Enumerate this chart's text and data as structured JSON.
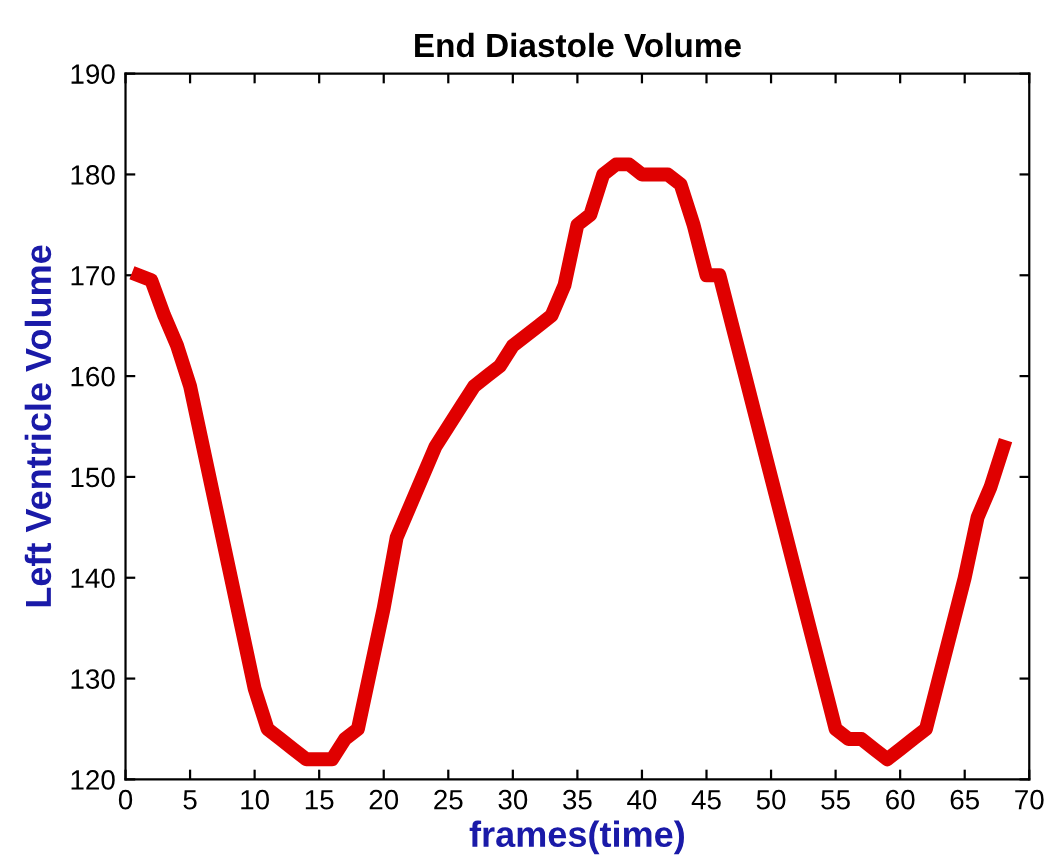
{
  "chart_data": {
    "type": "line",
    "title": "End Diastole Volume",
    "xlabel": "frames(time)",
    "ylabel": "Left Ventricle Volume",
    "x": [
      1,
      2,
      3,
      4,
      5,
      6,
      7,
      8,
      9,
      10,
      11,
      12,
      13,
      14,
      15,
      16,
      17,
      18,
      19,
      20,
      21,
      22,
      23,
      24,
      25,
      26,
      27,
      28,
      29,
      30,
      31,
      32,
      33,
      34,
      35,
      36,
      37,
      38,
      39,
      40,
      41,
      42,
      43,
      44,
      45,
      46,
      47,
      48,
      49,
      50,
      51,
      52,
      53,
      54,
      55,
      56,
      57,
      58,
      59,
      60,
      61,
      62,
      63,
      64,
      65,
      66,
      67,
      68
    ],
    "series": [
      {
        "color": "#e00000",
        "values": [
          170,
          169.5,
          166,
          163,
          159,
          153,
          147,
          141,
          135,
          129,
          125,
          124,
          123,
          122,
          122,
          122,
          124,
          125,
          131,
          137,
          144,
          147,
          150,
          153,
          155,
          157,
          159,
          160,
          161,
          163,
          164,
          165,
          166,
          169,
          175,
          176,
          180,
          181,
          181,
          180,
          180,
          180,
          179,
          175,
          170,
          170,
          165,
          160,
          155,
          150,
          145,
          140,
          135,
          130,
          125,
          124,
          124,
          123,
          122,
          123,
          124,
          125,
          130,
          135,
          140,
          146,
          149,
          153
        ]
      }
    ],
    "xlim": [
      0,
      70
    ],
    "xticks": [
      0,
      5,
      10,
      15,
      20,
      25,
      30,
      35,
      40,
      45,
      50,
      55,
      60,
      65,
      70
    ],
    "ylim": [
      120,
      190
    ],
    "yticks": [
      120,
      130,
      140,
      150,
      160,
      170,
      180,
      190
    ],
    "grid": false,
    "legend": false,
    "marker": "none",
    "line_style": "solid"
  }
}
